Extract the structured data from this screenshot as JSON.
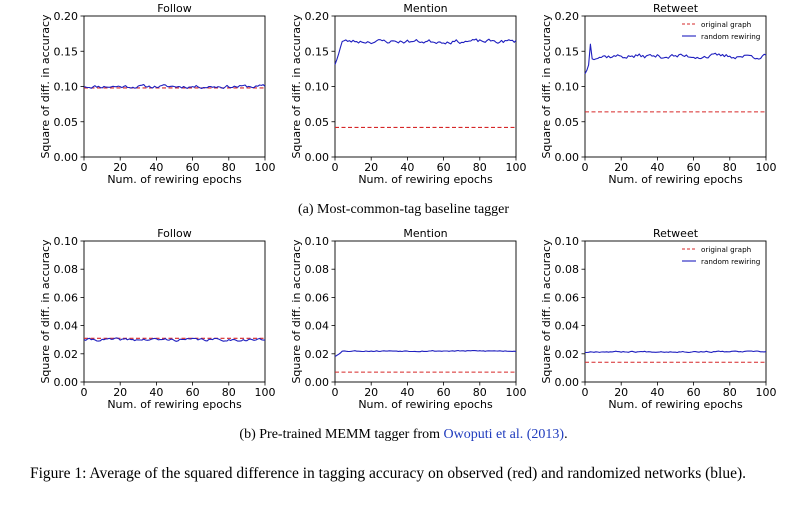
{
  "chart_data": [
    {
      "type": "line",
      "row": "a",
      "title": "Follow",
      "xlabel": "Num. of rewiring epochs",
      "ylabel": "Square of diff. in accuracy",
      "xlim": [
        0,
        100
      ],
      "ylim": [
        0,
        0.2
      ],
      "xticks": [
        "0",
        "20",
        "40",
        "60",
        "80",
        "100"
      ],
      "yticks": [
        "0.00",
        "0.05",
        "0.10",
        "0.15",
        "0.20"
      ],
      "series": [
        {
          "name": "original graph",
          "color": "#d62728",
          "style": "dashed",
          "value": 0.098
        },
        {
          "name": "random rewiring",
          "color": "#1f1fbf",
          "style": "solid",
          "start": 0.1,
          "base": 0.1,
          "noise": 0.0045,
          "seed": 11,
          "dip": -0.004
        }
      ]
    },
    {
      "type": "line",
      "row": "a",
      "title": "Mention",
      "xlabel": "Num. of rewiring epochs",
      "ylabel": "Square of diff. in accuracy",
      "xlim": [
        0,
        100
      ],
      "ylim": [
        0,
        0.2
      ],
      "xticks": [
        "0",
        "20",
        "40",
        "60",
        "80",
        "100"
      ],
      "yticks": [
        "0.00",
        "0.05",
        "0.10",
        "0.15",
        "0.20"
      ],
      "series": [
        {
          "name": "original graph",
          "color": "#d62728",
          "style": "dashed",
          "value": 0.042
        },
        {
          "name": "random rewiring",
          "color": "#1f1fbf",
          "style": "solid",
          "start": 0.131,
          "base": 0.164,
          "noise": 0.0055,
          "seed": 23,
          "dip": -0.004
        }
      ]
    },
    {
      "type": "line",
      "row": "a",
      "title": "Retweet",
      "xlabel": "Num. of rewiring epochs",
      "ylabel": "Square of diff. in accuracy",
      "xlim": [
        0,
        100
      ],
      "ylim": [
        0,
        0.2
      ],
      "xticks": [
        "0",
        "20",
        "40",
        "60",
        "80",
        "100"
      ],
      "yticks": [
        "0.00",
        "0.05",
        "0.10",
        "0.15",
        "0.20"
      ],
      "legend": "top-right",
      "series": [
        {
          "name": "original graph",
          "color": "#d62728",
          "style": "dashed",
          "value": 0.064
        },
        {
          "name": "random rewiring",
          "color": "#1f1fbf",
          "style": "solid",
          "start": 0.118,
          "base": 0.143,
          "noise": 0.0065,
          "seed": 37,
          "peak": 0.16
        }
      ]
    },
    {
      "type": "line",
      "row": "b",
      "title": "Follow",
      "xlabel": "Num. of rewiring epochs",
      "ylabel": "Square of diff. in accuracy",
      "xlim": [
        0,
        100
      ],
      "ylim": [
        0,
        0.1
      ],
      "xticks": [
        "0",
        "20",
        "40",
        "60",
        "80",
        "100"
      ],
      "yticks": [
        "0.00",
        "0.02",
        "0.04",
        "0.06",
        "0.08",
        "0.10"
      ],
      "series": [
        {
          "name": "original graph",
          "color": "#d62728",
          "style": "dashed",
          "value": 0.031
        },
        {
          "name": "random rewiring",
          "color": "#1f1fbf",
          "style": "solid",
          "start": 0.03,
          "base": 0.03,
          "noise": 0.0018,
          "seed": 41
        }
      ]
    },
    {
      "type": "line",
      "row": "b",
      "title": "Mention",
      "xlabel": "Num. of rewiring epochs",
      "ylabel": "Square of diff. in accuracy",
      "xlim": [
        0,
        100
      ],
      "ylim": [
        0,
        0.1
      ],
      "xticks": [
        "0",
        "20",
        "40",
        "60",
        "80",
        "100"
      ],
      "yticks": [
        "0.00",
        "0.02",
        "0.04",
        "0.06",
        "0.08",
        "0.10"
      ],
      "series": [
        {
          "name": "original graph",
          "color": "#d62728",
          "style": "dashed",
          "value": 0.007
        },
        {
          "name": "random rewiring",
          "color": "#1f1fbf",
          "style": "solid",
          "start": 0.018,
          "base": 0.022,
          "noise": 0.0007,
          "seed": 53
        }
      ]
    },
    {
      "type": "line",
      "row": "b",
      "title": "Retweet",
      "xlabel": "Num. of rewiring epochs",
      "ylabel": "Square of diff. in accuracy",
      "xlim": [
        0,
        100
      ],
      "ylim": [
        0,
        0.1
      ],
      "xticks": [
        "0",
        "20",
        "40",
        "60",
        "80",
        "100"
      ],
      "yticks": [
        "0.00",
        "0.02",
        "0.04",
        "0.06",
        "0.08",
        "0.10"
      ],
      "legend": "top-right",
      "series": [
        {
          "name": "original graph",
          "color": "#d62728",
          "style": "dashed",
          "value": 0.014
        },
        {
          "name": "random rewiring",
          "color": "#1f1fbf",
          "style": "solid",
          "start": 0.021,
          "base": 0.0215,
          "noise": 0.0008,
          "seed": 67
        }
      ]
    }
  ],
  "captions": {
    "a": "(a) Most-common-tag baseline tagger",
    "b_prefix": "(b) Pre-trained MEMM tagger from ",
    "b_cite": "Owoputi et al. (2013)",
    "b_suffix": ".",
    "figure": "Figure 1: Average of the squared difference in tagging accuracy on observed (red) and randomized networks (blue)."
  }
}
